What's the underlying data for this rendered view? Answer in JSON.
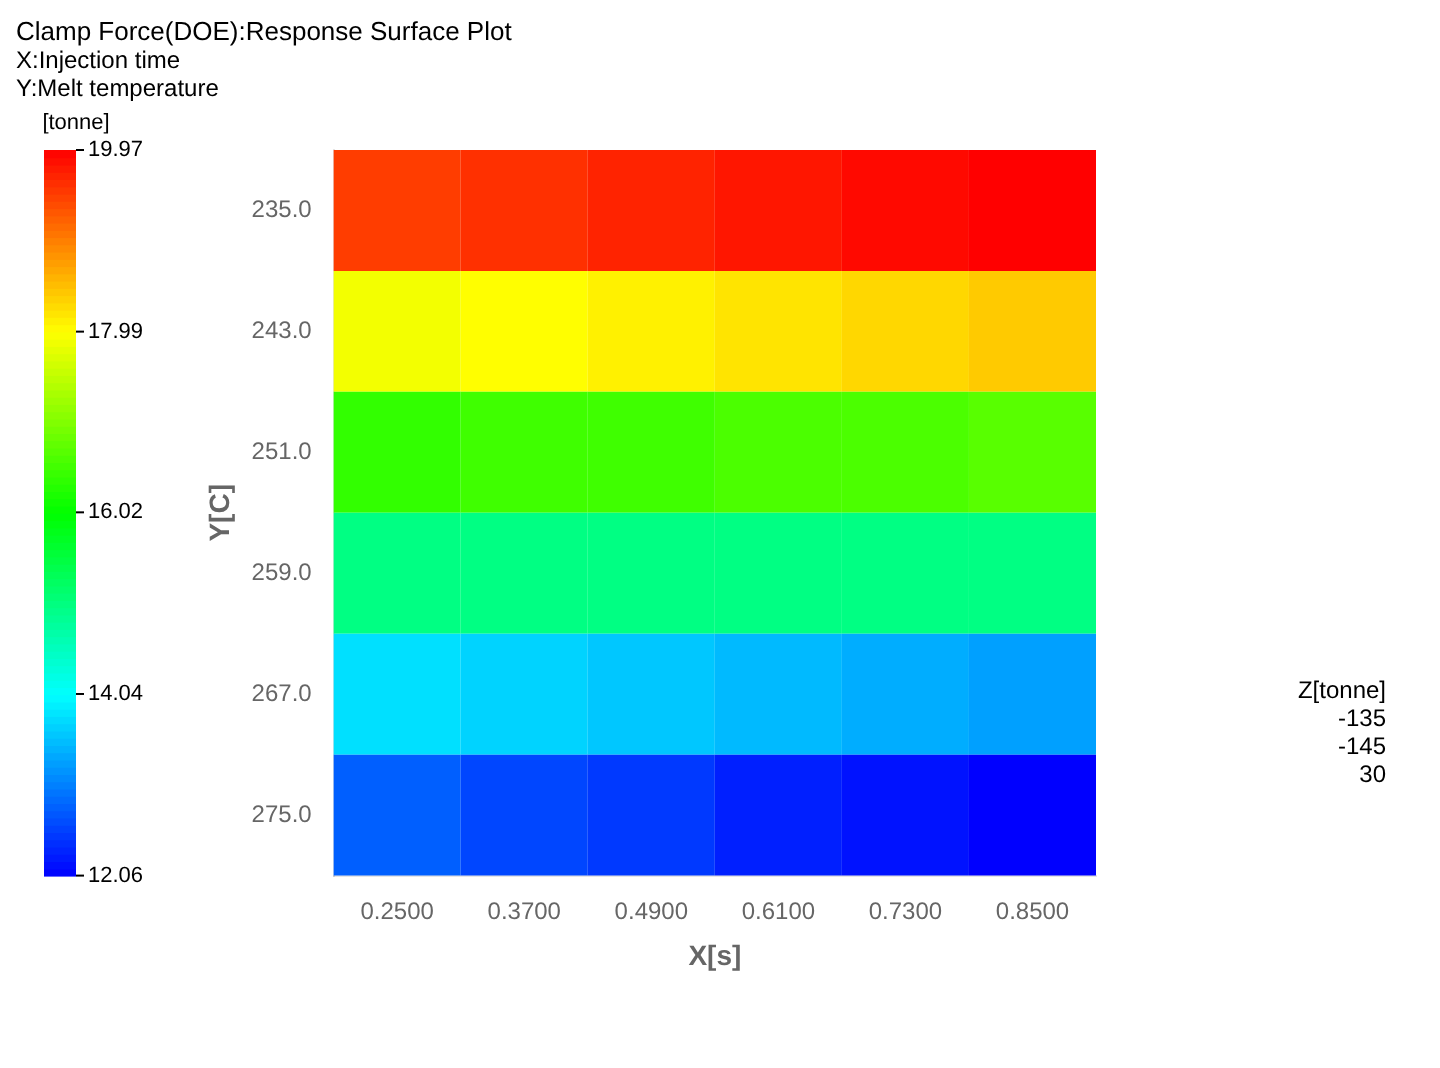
{
  "chart_data": {
    "type": "heatmap",
    "title": "Clamp Force(DOE):Response Surface Plot",
    "subtitle": "X:Injection time\nY:Melt temperature",
    "xlabel": "X[s]",
    "ylabel": "Y[C]",
    "clabel": "[tonne]",
    "categories": [
      "0.2500",
      "0.3700",
      "0.4900",
      "0.6100",
      "0.7300",
      "0.8500"
    ],
    "y_categories": [
      "235.0",
      "243.0",
      "251.0",
      "259.0",
      "267.0",
      "275.0"
    ],
    "cells": [
      [
        19.5,
        19.6,
        19.7,
        19.8,
        19.9,
        19.97
      ],
      [
        17.9,
        18.0,
        18.1,
        18.2,
        18.3,
        18.4
      ],
      [
        16.4,
        16.5,
        16.5,
        16.6,
        16.6,
        16.7
      ],
      [
        15.0,
        15.0,
        15.0,
        15.0,
        15.0,
        15.0
      ],
      [
        13.8,
        13.7,
        13.6,
        13.5,
        13.4,
        13.3
      ],
      [
        12.8,
        12.6,
        12.5,
        12.3,
        12.2,
        12.06
      ]
    ],
    "clim": [
      12.06,
      19.97
    ],
    "cticks": [
      12.06,
      14.04,
      16.02,
      17.99,
      19.97
    ],
    "annotations": [
      "Z[tonne]",
      "-135",
      "-145",
      "30"
    ]
  }
}
